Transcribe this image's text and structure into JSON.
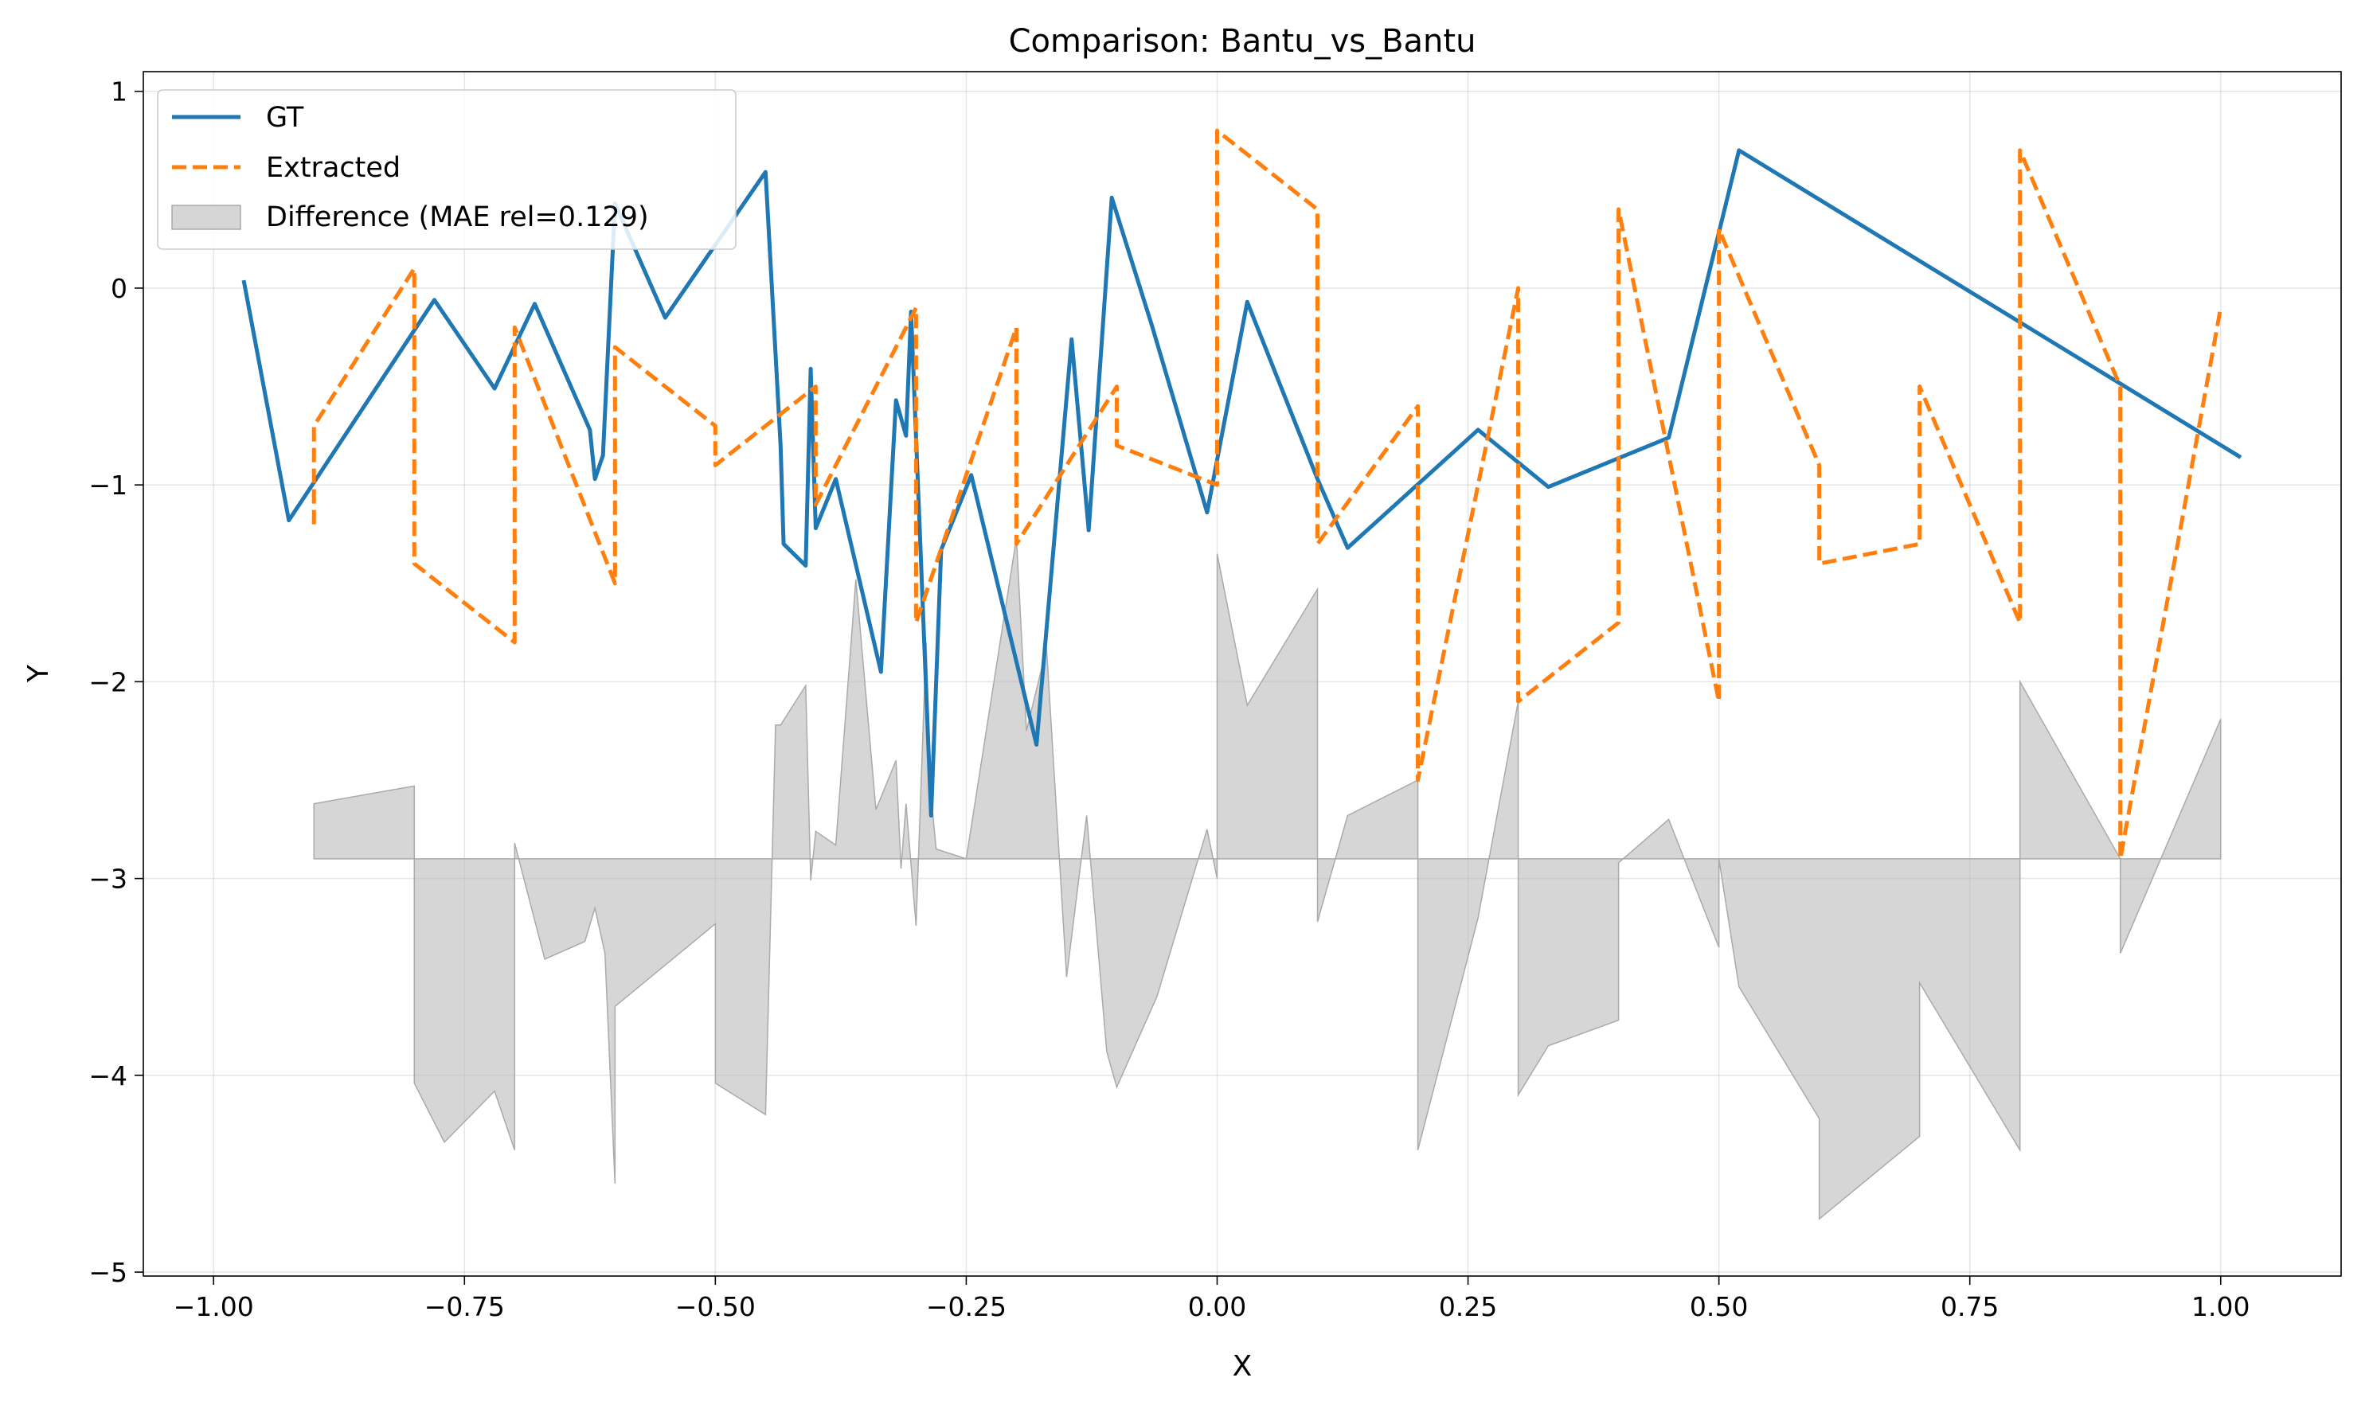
{
  "chart_data": {
    "type": "line",
    "title": "Comparison: Bantu_vs_Bantu",
    "xlabel": "X",
    "ylabel": "Y",
    "xlim": [
      -1.07,
      1.12
    ],
    "ylim": [
      -5.02,
      1.1
    ],
    "xticks": [
      -1.0,
      -0.75,
      -0.5,
      -0.25,
      0.0,
      0.25,
      0.5,
      0.75,
      1.0
    ],
    "xtick_labels": [
      "−1.00",
      "−0.75",
      "−0.50",
      "−0.25",
      "0.00",
      "0.25",
      "0.50",
      "0.75",
      "1.00"
    ],
    "yticks": [
      -5,
      -4,
      -3,
      -2,
      -1,
      0,
      1
    ],
    "ytick_labels": [
      "−5",
      "−4",
      "−3",
      "−2",
      "−1",
      "0",
      "1"
    ],
    "grid": true,
    "legend_position": "upper-left",
    "series": [
      {
        "name": "GT",
        "style": "solid",
        "color": "#1f77b4",
        "x": [
          -0.97,
          -0.925,
          -0.78,
          -0.72,
          -0.68,
          -0.625,
          -0.62,
          -0.612,
          -0.6,
          -0.55,
          -0.45,
          -0.435,
          -0.432,
          -0.41,
          -0.405,
          -0.4,
          -0.38,
          -0.335,
          -0.32,
          -0.31,
          -0.305,
          -0.285,
          -0.275,
          -0.245,
          -0.18,
          -0.145,
          -0.128,
          -0.105,
          -0.065,
          -0.01,
          0.03,
          0.1,
          0.13,
          0.26,
          0.33,
          0.45,
          0.52,
          1.02
        ],
        "y": [
          0.04,
          -1.18,
          -0.06,
          -0.51,
          -0.08,
          -0.72,
          -0.97,
          -0.85,
          0.43,
          -0.15,
          0.59,
          -0.8,
          -1.3,
          -1.41,
          -0.41,
          -1.22,
          -0.97,
          -1.95,
          -0.57,
          -0.75,
          -0.12,
          -2.68,
          -1.33,
          -0.95,
          -2.32,
          -0.26,
          -1.23,
          0.46,
          -0.19,
          -1.14,
          -0.07,
          -0.97,
          -1.32,
          -0.72,
          -1.01,
          -0.76,
          0.7,
          -0.86
        ]
      },
      {
        "name": "Extracted",
        "style": "dashed",
        "color": "#ff7f0e",
        "x": [
          -0.9,
          -0.9,
          -0.8,
          -0.8,
          -0.7,
          -0.7,
          -0.6,
          -0.6,
          -0.5,
          -0.5,
          -0.4,
          -0.4,
          -0.3,
          -0.3,
          -0.2,
          -0.2,
          -0.1,
          -0.1,
          0.0,
          0.0,
          0.1,
          0.1,
          0.2,
          0.2,
          0.3,
          0.3,
          0.4,
          0.4,
          0.5,
          0.5,
          0.6,
          0.6,
          0.7,
          0.7,
          0.8,
          0.8,
          0.9,
          0.9,
          1.0
        ],
        "y": [
          -1.2,
          -0.7,
          0.1,
          -1.4,
          -1.8,
          -0.2,
          -1.5,
          -0.3,
          -0.7,
          -0.9,
          -0.5,
          -1.1,
          -0.1,
          -1.7,
          -0.2,
          -1.3,
          -0.5,
          -0.8,
          -1.0,
          0.8,
          0.4,
          -1.3,
          -0.6,
          -2.5,
          0.0,
          -2.1,
          -1.7,
          0.4,
          -2.1,
          0.3,
          -0.9,
          -1.4,
          -1.3,
          -0.5,
          -1.7,
          0.7,
          -0.5,
          -2.9,
          -0.1
        ]
      },
      {
        "name": "Difference (MAE rel=0.129)",
        "style": "fill",
        "color": "#bbbbbb",
        "baseline": -2.9,
        "x": [
          -0.9,
          -0.8,
          -0.8,
          -0.77,
          -0.72,
          -0.7,
          -0.7,
          -0.67,
          -0.63,
          -0.62,
          -0.61,
          -0.6,
          -0.6,
          -0.5,
          -0.5,
          -0.45,
          -0.44,
          -0.435,
          -0.41,
          -0.405,
          -0.4,
          -0.38,
          -0.36,
          -0.34,
          -0.32,
          -0.315,
          -0.31,
          -0.3,
          -0.29,
          -0.285,
          -0.28,
          -0.25,
          -0.2,
          -0.19,
          -0.17,
          -0.15,
          -0.13,
          -0.11,
          -0.1,
          -0.06,
          -0.01,
          0.0,
          0.0,
          0.03,
          0.1,
          0.1,
          0.13,
          0.2,
          0.2,
          0.26,
          0.3,
          0.3,
          0.33,
          0.4,
          0.4,
          0.45,
          0.5,
          0.5,
          0.52,
          0.6,
          0.6,
          0.7,
          0.7,
          0.8,
          0.8,
          0.9,
          0.9,
          1.0
        ],
        "y": [
          -2.62,
          -2.53,
          -4.04,
          -4.34,
          -4.08,
          -4.38,
          -2.82,
          -3.41,
          -3.32,
          -3.15,
          -3.38,
          -4.55,
          -3.65,
          -3.23,
          -4.04,
          -4.2,
          -2.22,
          -2.22,
          -2.02,
          -3.01,
          -2.76,
          -2.83,
          -1.48,
          -2.65,
          -2.4,
          -2.95,
          -2.62,
          -3.24,
          -1.8,
          -2.58,
          -2.85,
          -2.9,
          -1.27,
          -2.25,
          -1.83,
          -3.5,
          -2.68,
          -3.88,
          -4.06,
          -3.6,
          -2.75,
          -3.0,
          -1.35,
          -2.12,
          -1.53,
          -3.22,
          -2.68,
          -2.5,
          -4.38,
          -3.2,
          -2.1,
          -4.1,
          -3.85,
          -3.72,
          -2.92,
          -2.7,
          -3.35,
          -2.9,
          -3.55,
          -4.22,
          -4.73,
          -4.31,
          -3.53,
          -4.38,
          -2.0,
          -2.9,
          -3.38,
          -2.19
        ]
      }
    ]
  }
}
